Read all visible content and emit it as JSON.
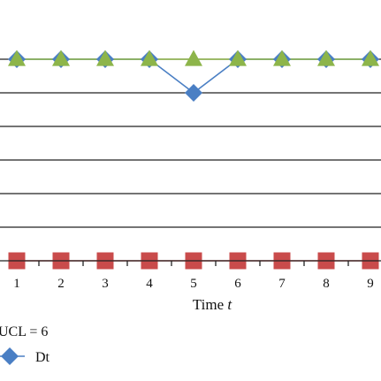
{
  "chart_data": {
    "type": "line",
    "x": [
      1,
      2,
      3,
      4,
      5,
      6,
      7,
      8,
      9
    ],
    "xlabel": {
      "text": "Time ",
      "variable": "t"
    },
    "ylabel": "",
    "grid": true,
    "series": [
      {
        "name": "",
        "marker": "triangle",
        "color": "#8db54a",
        "line_color": "#8db54a",
        "values": [
          6,
          6,
          6,
          6,
          6,
          6,
          6,
          6,
          6
        ]
      },
      {
        "name": "Dt",
        "marker": "diamond",
        "color": "#4a7fc4",
        "line_color": "#4a7fc4",
        "values": [
          6,
          6,
          6,
          6,
          5,
          6,
          6,
          6,
          6
        ]
      },
      {
        "name": "",
        "marker": "square",
        "color": "#c94b4b",
        "line_color": "#c94b4b",
        "values": [
          0,
          0,
          0,
          0,
          0,
          0,
          0,
          0,
          0
        ]
      }
    ],
    "legend": {
      "position": "bottom-left",
      "items": [
        {
          "label": "UCL = 6",
          "marker": "none",
          "color": "#8db54a"
        },
        {
          "label": "Dt",
          "marker": "diamond",
          "color": "#4a7fc4"
        }
      ]
    },
    "gridline_color": "#222222",
    "axis_color": "#222222"
  }
}
